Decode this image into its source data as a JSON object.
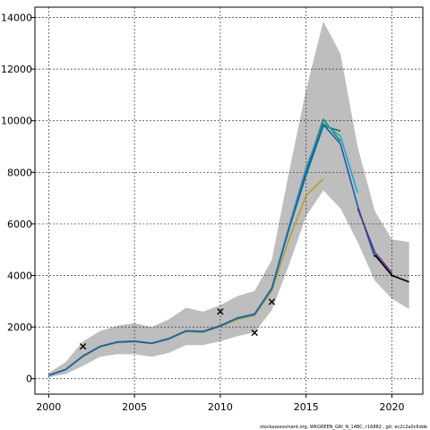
{
  "chart_data": {
    "type": "line",
    "title": "",
    "xlabel": "",
    "ylabel": "",
    "xlim": [
      1999.2,
      2021.8
    ],
    "ylim": [
      -600,
      14400
    ],
    "x_ticks": [
      2000,
      2005,
      2010,
      2015,
      2020
    ],
    "y_ticks": [
      0,
      2000,
      4000,
      6000,
      8000,
      10000,
      12000,
      14000
    ],
    "grid": true,
    "legend": "none",
    "footer": "stockassessment.org, WKGREEN_GRI_N_14BC, r16882 , git: ec2c2a0c6dde",
    "confidence_band": {
      "color": "#bebebe",
      "x": [
        2000,
        2001,
        2002,
        2003,
        2004,
        2005,
        2006,
        2007,
        2008,
        2009,
        2010,
        2011,
        2012,
        2013,
        2014,
        2015,
        2016,
        2017,
        2018,
        2019,
        2020,
        2021
      ],
      "upper": [
        220,
        650,
        1450,
        1850,
        2050,
        2150,
        2000,
        2300,
        2750,
        2600,
        2850,
        3200,
        3400,
        4600,
        8000,
        11200,
        13850,
        12600,
        9000,
        6500,
        5400,
        5300
      ],
      "lower": [
        60,
        180,
        500,
        850,
        950,
        950,
        850,
        1000,
        1300,
        1300,
        1450,
        1650,
        1800,
        2650,
        4400,
        6300,
        7300,
        6600,
        5300,
        3800,
        3100,
        2700
      ]
    },
    "series": [
      {
        "color": "#000000",
        "x": [
          2019,
          2020,
          2021
        ],
        "values": [
          4800,
          4000,
          3750
        ]
      },
      {
        "color": "#5b2c83",
        "x": [
          2018,
          2019,
          2020
        ],
        "values": [
          6600,
          4900,
          4100
        ]
      },
      {
        "color": "#1f5fa8",
        "x": [
          2000,
          2001,
          2002,
          2003,
          2004,
          2005,
          2006,
          2007,
          2008,
          2009,
          2010,
          2011,
          2012,
          2013,
          2014,
          2015,
          2016,
          2017,
          2018,
          2019
        ],
        "values": [
          130,
          360,
          880,
          1250,
          1420,
          1450,
          1370,
          1550,
          1850,
          1830,
          2050,
          2350,
          2500,
          3500,
          5800,
          8000,
          9850,
          9100,
          6700,
          4700
        ]
      },
      {
        "color": "#2aa3cf",
        "x": [
          2000,
          2001,
          2002,
          2003,
          2004,
          2005,
          2006,
          2007,
          2008,
          2009,
          2010,
          2011,
          2012,
          2013,
          2014,
          2015,
          2016,
          2017,
          2018
        ],
        "values": [
          130,
          360,
          880,
          1260,
          1430,
          1460,
          1380,
          1560,
          1860,
          1840,
          2060,
          2360,
          2520,
          3520,
          5900,
          8200,
          9900,
          9400,
          7200
        ]
      },
      {
        "color": "#16906a",
        "x": [
          2000,
          2001,
          2002,
          2003,
          2004,
          2005,
          2006,
          2007,
          2008,
          2009,
          2010,
          2011,
          2012,
          2013,
          2014,
          2015,
          2016,
          2017
        ],
        "values": [
          130,
          360,
          880,
          1250,
          1420,
          1450,
          1370,
          1550,
          1850,
          1830,
          2050,
          2350,
          2500,
          3500,
          5900,
          8100,
          10050,
          9200
        ]
      },
      {
        "color": "#1a6e3c",
        "x": [
          2000,
          2001,
          2002,
          2003,
          2004,
          2005,
          2006,
          2007,
          2008,
          2009,
          2010,
          2011,
          2012,
          2013,
          2014,
          2015,
          2016,
          2017
        ],
        "values": [
          130,
          360,
          880,
          1250,
          1420,
          1450,
          1370,
          1550,
          1850,
          1830,
          2050,
          2350,
          2500,
          3500,
          5800,
          7900,
          9800,
          9600
        ]
      },
      {
        "color": "#b5a02a",
        "x": [
          2000,
          2001,
          2002,
          2003,
          2004,
          2005,
          2006,
          2007,
          2008,
          2009,
          2010,
          2011,
          2012,
          2013,
          2014,
          2015,
          2016
        ],
        "values": [
          130,
          350,
          850,
          1230,
          1400,
          1430,
          1360,
          1530,
          1830,
          1800,
          2020,
          2300,
          2450,
          3400,
          5400,
          7100,
          7750
        ]
      }
    ],
    "observations": {
      "marker": "x",
      "x": [
        2002,
        2010,
        2012,
        2013
      ],
      "values": [
        1250,
        2600,
        1780,
        2980
      ]
    }
  }
}
